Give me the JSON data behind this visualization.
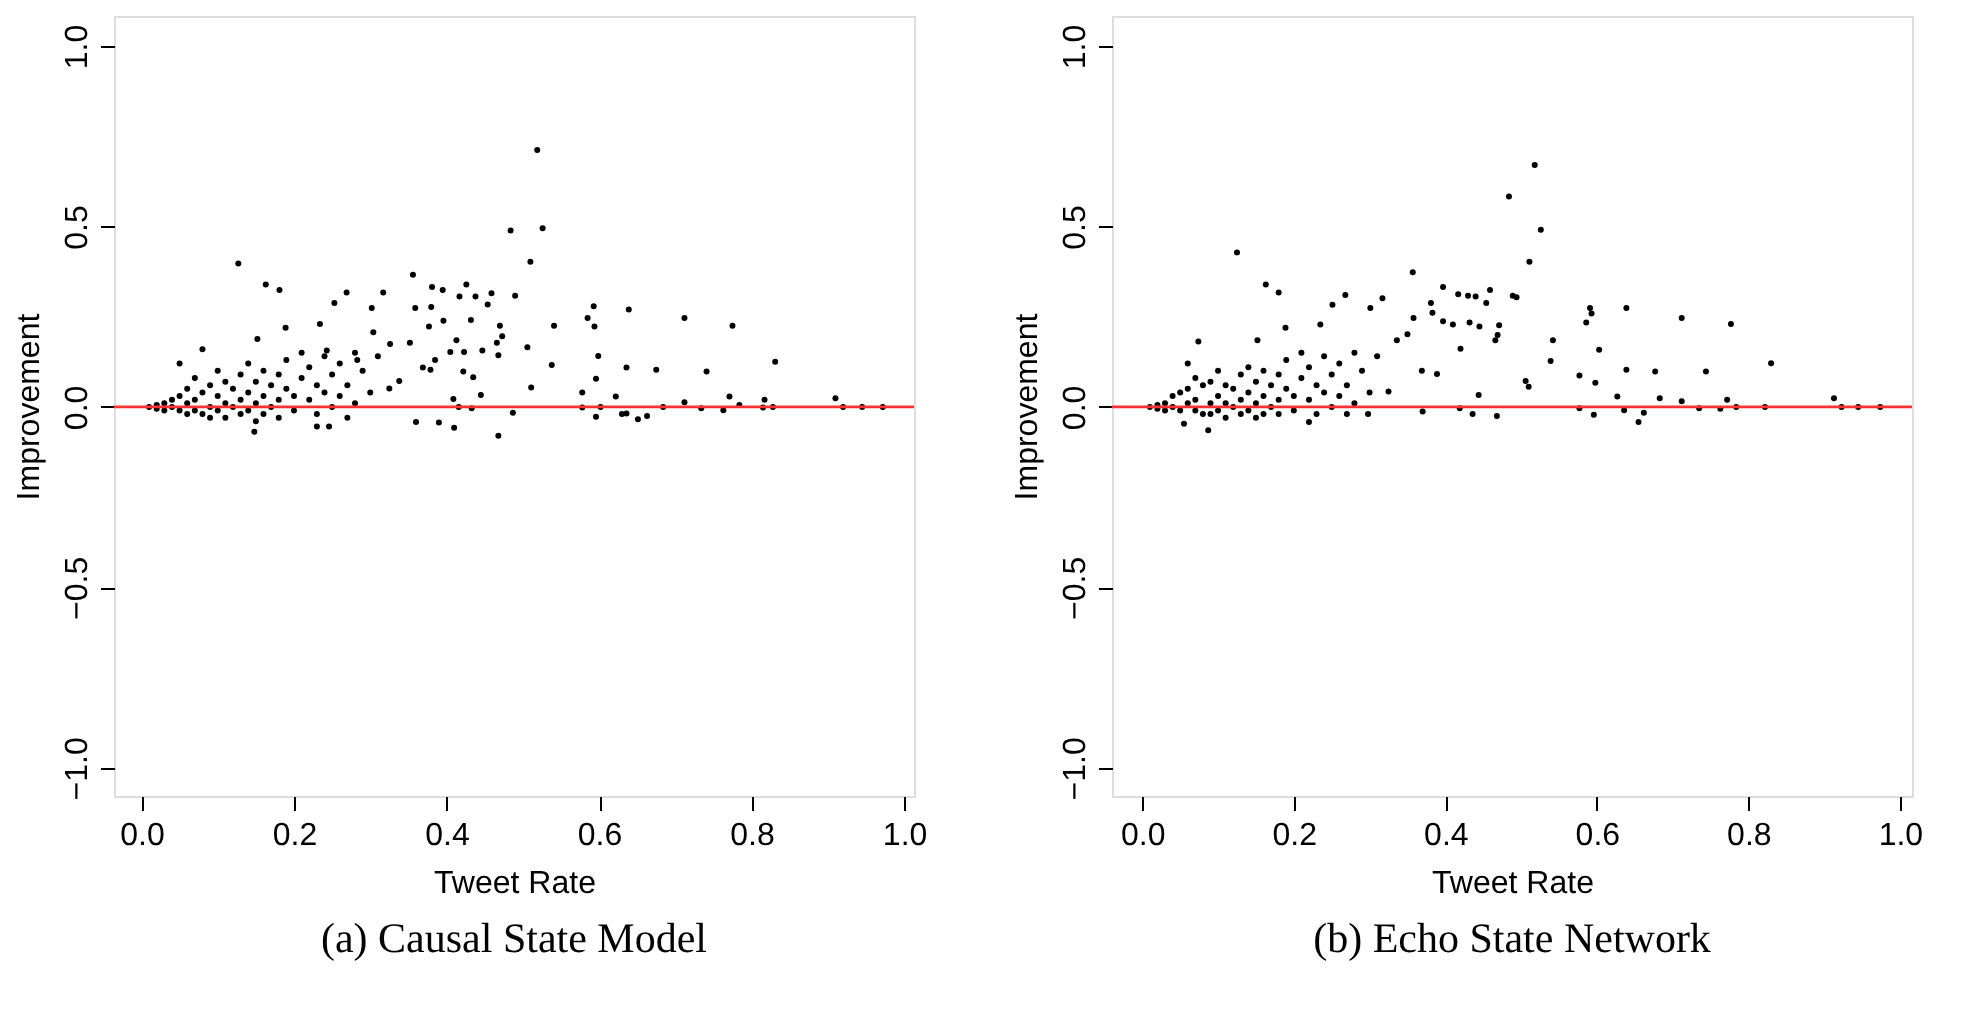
{
  "chart_data": [
    {
      "type": "scatter",
      "title": "(a)  Causal State Model",
      "xlabel": "Tweet Rate",
      "ylabel": "Improvement",
      "color": "#000000",
      "marker": "circle",
      "xlim": [
        -0.036,
        1.013
      ],
      "ylim": [
        -1.078,
        1.083
      ],
      "xticks": [
        {
          "value": 0,
          "label": "0.0"
        },
        {
          "value": 0.2,
          "label": "0.2"
        },
        {
          "value": 0.4,
          "label": "0.4"
        },
        {
          "value": 0.6,
          "label": "0.6"
        },
        {
          "value": 0.8,
          "label": "0.8"
        },
        {
          "value": 1,
          "label": "1.0"
        }
      ],
      "yticks": [
        {
          "value": -1,
          "label": "−1.0"
        },
        {
          "value": -0.5,
          "label": "−0.5"
        },
        {
          "value": 0,
          "label": "0.0"
        },
        {
          "value": 0.5,
          "label": "0.5"
        },
        {
          "value": 1,
          "label": "1.0"
        }
      ],
      "ref_lines": [
        {
          "axis": "y",
          "value": 0,
          "color": "#ff3333"
        }
      ],
      "x": [
        0.519,
        0.484,
        0.526,
        0.51,
        0.127,
        0.356,
        0.163,
        0.181,
        0.269,
        0.317,
        0.381,
        0.395,
        0.426,
        0.417,
        0.438,
        0.459,
        0.454,
        0.49,
        0.253,
        0.302,
        0.359,
        0.38,
        0.593,
        0.639,
        0.712,
        0.775,
        0.585,
        0.594,
        0.541,
        0.432,
        0.396,
        0.377,
        0.234,
        0.189,
        0.304,
        0.47,
        0.473,
        0.466,
        0.152,
        0.506,
        0.413,
        0.447,
        0.405,
        0.423,
        0.468,
        0.326,
        0.352,
        0.243,
        0.283,
        0.599,
        0.831,
        0.538,
        0.636,
        0.675,
        0.741,
        0.369,
        0.379,
        0.385,
        0.422,
        0.435,
        0.596,
        0.511,
        0.578,
        0.338,
        0.325,
        0.445,
        0.409,
        0.622,
        0.771,
        0.817,
        0.91,
        0.712,
        0.63,
        0.596,
        0.636,
        0.651,
        0.663,
        0.487,
        0.468,
        0.41,
        0.36,
        0.39,
        0.148,
        0.23,
        0.246,
        0.684,
        0.734,
        0.763,
        0.784,
        0.815,
        0.828,
        0.92,
        0.945,
        0.972,
        0.602,
        0.578,
        0.433,
        0.416,
        0.01,
        0.02,
        0.02,
        0.03,
        0.03,
        0.04,
        0.04,
        0.05,
        0.05,
        0.05,
        0.06,
        0.06,
        0.06,
        0.07,
        0.07,
        0.07,
        0.08,
        0.08,
        0.08,
        0.09,
        0.09,
        0.09,
        0.1,
        0.1,
        0.1,
        0.11,
        0.11,
        0.11,
        0.12,
        0.12,
        0.13,
        0.13,
        0.13,
        0.14,
        0.14,
        0.14,
        0.15,
        0.15,
        0.15,
        0.16,
        0.16,
        0.16,
        0.17,
        0.17,
        0.18,
        0.18,
        0.18,
        0.19,
        0.19,
        0.2,
        0.2,
        0.21,
        0.21,
        0.22,
        0.22,
        0.23,
        0.23,
        0.24,
        0.24,
        0.25,
        0.25,
        0.26,
        0.26,
        0.27,
        0.27,
        0.28,
        0.28,
        0.29,
        0.3,
        0.31
      ],
      "values": [
        0.712,
        0.489,
        0.495,
        0.402,
        0.397,
        0.366,
        0.339,
        0.324,
        0.317,
        0.317,
        0.332,
        0.324,
        0.339,
        0.306,
        0.306,
        0.315,
        0.284,
        0.308,
        0.288,
        0.274,
        0.274,
        0.277,
        0.279,
        0.27,
        0.246,
        0.225,
        0.246,
        0.223,
        0.225,
        0.241,
        0.239,
        0.223,
        0.23,
        0.219,
        0.207,
        0.225,
        0.196,
        0.178,
        0.188,
        0.165,
        0.185,
        0.156,
        0.152,
        0.152,
        0.143,
        0.174,
        0.178,
        0.156,
        0.13,
        0.141,
        0.125,
        0.116,
        0.109,
        0.103,
        0.098,
        0.109,
        0.103,
        0.13,
        0.098,
        0.082,
        0.078,
        0.054,
        0.04,
        0.072,
        0.051,
        0.033,
        0.022,
        0.029,
        0.029,
        0.02,
        0.024,
        0.013,
        -0.02,
        -0.027,
        -0.018,
        -0.034,
        -0.025,
        -0.016,
        -0.08,
        -0.058,
        -0.042,
        -0.043,
        -0.069,
        -0.054,
        -0.054,
        0,
        -0.004,
        -0.009,
        0.005,
        -0.002,
        0,
        0,
        0,
        0,
        0,
        -0.002,
        -0.004,
        0,
        0,
        0.005,
        -0.005,
        0.01,
        -0.01,
        0.02,
        0,
        0.03,
        -0.01,
        0.12,
        0.05,
        0.01,
        -0.02,
        0.08,
        0.02,
        -0.01,
        0.04,
        0.16,
        -0.02,
        0.06,
        0,
        -0.03,
        0.1,
        0.03,
        -0.01,
        0.07,
        0.01,
        -0.03,
        0.05,
        0,
        0.09,
        0.02,
        -0.02,
        0.12,
        0.04,
        -0.01,
        0.07,
        0.01,
        -0.04,
        0.1,
        0.03,
        -0.02,
        0.06,
        0,
        0.09,
        0.02,
        -0.03,
        0.05,
        0.13,
        0.03,
        -0.01,
        0.08,
        0.15,
        0.02,
        0.11,
        0.06,
        -0.02,
        0.14,
        0.04,
        0.09,
        0,
        0.12,
        0.03,
        0.06,
        -0.03,
        0.15,
        0.01,
        0.1,
        0.04,
        0.14
      ]
    },
    {
      "type": "scatter",
      "title": "(b)  Echo State Network",
      "xlabel": "Tweet Rate",
      "ylabel": "Improvement",
      "color": "#000000",
      "marker": "circle",
      "xlim": [
        -0.04,
        1.016
      ],
      "ylim": [
        -1.078,
        1.083
      ],
      "xticks": [
        {
          "value": 0,
          "label": "0.0"
        },
        {
          "value": 0.2,
          "label": "0.2"
        },
        {
          "value": 0.4,
          "label": "0.4"
        },
        {
          "value": 0.6,
          "label": "0.6"
        },
        {
          "value": 0.8,
          "label": "0.8"
        },
        {
          "value": 1,
          "label": "1.0"
        }
      ],
      "yticks": [
        {
          "value": -1,
          "label": "−1.0"
        },
        {
          "value": -0.5,
          "label": "−0.5"
        },
        {
          "value": 0,
          "label": "0.0"
        },
        {
          "value": 0.5,
          "label": "0.5"
        },
        {
          "value": 1,
          "label": "1.0"
        }
      ],
      "ref_lines": [
        {
          "axis": "y",
          "value": 0,
          "color": "#ff3333"
        }
      ],
      "x": [
        0.518,
        0.484,
        0.526,
        0.511,
        0.125,
        0.357,
        0.163,
        0.18,
        0.397,
        0.459,
        0.417,
        0.43,
        0.44,
        0.454,
        0.489,
        0.494,
        0.268,
        0.317,
        0.251,
        0.301,
        0.381,
        0.383,
        0.639,
        0.591,
        0.593,
        0.586,
        0.712,
        0.777,
        0.358,
        0.397,
        0.41,
        0.432,
        0.445,
        0.235,
        0.189,
        0.471,
        0.469,
        0.466,
        0.542,
        0.152,
        0.074,
        0.35,
        0.336,
        0.42,
        0.603,
        0.539,
        0.83,
        0.639,
        0.677,
        0.744,
        0.389,
        0.369,
        0.577,
        0.598,
        0.506,
        0.51,
        0.325,
        0.444,
        0.627,
        0.683,
        0.712,
        0.772,
        0.913,
        0.923,
        0.945,
        0.974,
        0.822,
        0.784,
        0.763,
        0.735,
        0.577,
        0.596,
        0.636,
        0.655,
        0.662,
        0.436,
        0.468,
        0.419,
        0.087,
        0.055,
        0.22,
        0.298,
        0.37,
        0.01,
        0.02,
        0.02,
        0.03,
        0.03,
        0.04,
        0.04,
        0.05,
        0.05,
        0.06,
        0.06,
        0.06,
        0.07,
        0.07,
        0.07,
        0.08,
        0.08,
        0.09,
        0.09,
        0.09,
        0.1,
        0.1,
        0.1,
        0.11,
        0.11,
        0.11,
        0.12,
        0.12,
        0.13,
        0.13,
        0.13,
        0.14,
        0.14,
        0.14,
        0.15,
        0.15,
        0.15,
        0.16,
        0.16,
        0.16,
        0.17,
        0.17,
        0.18,
        0.18,
        0.18,
        0.19,
        0.19,
        0.2,
        0.2,
        0.21,
        0.21,
        0.22,
        0.22,
        0.23,
        0.23,
        0.24,
        0.24,
        0.25,
        0.25,
        0.26,
        0.26,
        0.27,
        0.27,
        0.28,
        0.28,
        0.29,
        0.3,
        0.31
      ],
      "values": [
        0.67,
        0.583,
        0.491,
        0.402,
        0.428,
        0.373,
        0.339,
        0.317,
        0.332,
        0.324,
        0.312,
        0.308,
        0.306,
        0.288,
        0.308,
        0.304,
        0.31,
        0.301,
        0.283,
        0.274,
        0.288,
        0.261,
        0.274,
        0.274,
        0.259,
        0.234,
        0.246,
        0.23,
        0.246,
        0.237,
        0.228,
        0.234,
        0.223,
        0.228,
        0.219,
        0.226,
        0.199,
        0.185,
        0.185,
        0.185,
        0.181,
        0.201,
        0.185,
        0.161,
        0.158,
        0.127,
        0.121,
        0.103,
        0.098,
        0.098,
        0.091,
        0.1,
        0.087,
        0.067,
        0.072,
        0.056,
        0.043,
        0.033,
        0.029,
        0.024,
        0.016,
        0.02,
        0.024,
        0,
        0,
        0,
        0,
        0,
        -0.005,
        -0.004,
        -0.004,
        -0.022,
        -0.009,
        -0.042,
        -0.016,
        -0.02,
        -0.025,
        -0.004,
        -0.065,
        -0.047,
        -0.042,
        -0.02,
        -0.013,
        0,
        0.005,
        -0.005,
        0.01,
        -0.01,
        0.03,
        0,
        0.04,
        -0.01,
        0.12,
        0.05,
        0.01,
        0.08,
        0.02,
        -0.01,
        0.06,
        -0.02,
        0.07,
        0.01,
        -0.02,
        0.1,
        0.03,
        -0.01,
        0.06,
        0.01,
        -0.03,
        0.05,
        0,
        0.09,
        0.02,
        -0.02,
        0.11,
        0.04,
        -0.01,
        0.07,
        0.01,
        -0.03,
        0.1,
        0.03,
        -0.02,
        0.06,
        0,
        0.09,
        0.02,
        -0.02,
        0.05,
        0.13,
        0.03,
        -0.01,
        0.08,
        0.15,
        0.02,
        0.11,
        0.06,
        -0.02,
        0.14,
        0.04,
        0.09,
        0,
        0.12,
        0.03,
        0.06,
        -0.02,
        0.15,
        0.01,
        0.1,
        0.04,
        0.14
      ]
    }
  ]
}
